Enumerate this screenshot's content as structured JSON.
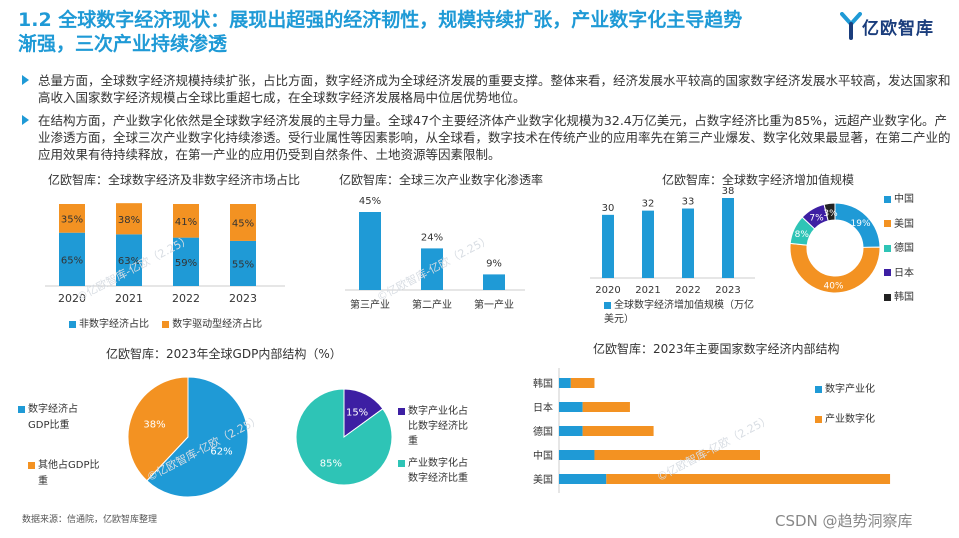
{
  "header": {
    "title_line1": "1.2 全球数字经济现状：展现出超强的经济韧性，规模持续扩张，产业数字化主导趋势",
    "title_line2": "渐强，三次产业持续渗透",
    "logo_text": "亿欧智库"
  },
  "paragraphs": [
    "总量方面，全球数字经济规模持续扩张，占比方面，数字经济成为全球经济发展的重要支撑。整体来看，经济发展水平较高的国家数字经济发展水平较高，发达国家和高收入国家数字经济规模占全球比重超七成，在全球数字经济发展格局中位居优势地位。",
    "在结构方面，产业数字化依然是全球数字经济发展的主导力量。全球47个主要经济体产业数字化规模为32.4万亿美元，占数字经济比重为85%，远超产业数字化。产业渗透方面，全球三次产业数字化持续渗透。受行业属性等因素影响，从全球看，数字技术在传统产业的应用率先在第三产业爆发、数字化效果最显著，在第二产业的应用效果有待持续释放，在第一产业的应用仍受到自然条件、土地资源等因素限制。"
  ],
  "colors": {
    "blue": "#1f9ad6",
    "orange": "#f39222",
    "teal": "#2ec4b6",
    "purple": "#3d1fa3",
    "black": "#222222",
    "title_blue": "#1f9ad6"
  },
  "footer": {
    "source": "数据来源：信通院，亿欧智库整理",
    "csdn": "CSDN @趋势洞察库"
  },
  "watermark": "©亿欧智库-亿欧（2.25）",
  "chart_data": [
    {
      "type": "bar",
      "stacked": true,
      "title": "亿欧智库：全球数字经济及非数字经济市场占比",
      "categories": [
        "2020",
        "2021",
        "2022",
        "2023"
      ],
      "series": [
        {
          "name": "非数字经济占比",
          "values": [
            65,
            63,
            59,
            55
          ],
          "labels": [
            "65%",
            "63%",
            "59%",
            "55%"
          ],
          "color": "#1f9ad6"
        },
        {
          "name": "数字驱动型经济占比",
          "values": [
            35,
            38,
            41,
            45
          ],
          "labels": [
            "35%",
            "38%",
            "41%",
            "45%"
          ],
          "color": "#f39222"
        }
      ]
    },
    {
      "type": "bar",
      "title": "亿欧智库：全球三次产业数字化渗透率",
      "categories": [
        "第三产业",
        "第二产业",
        "第一产业"
      ],
      "values": [
        45,
        24,
        9
      ],
      "labels": [
        "45%",
        "24%",
        "9%"
      ]
    },
    {
      "type": "bar",
      "title": "亿欧智库：全球数字经济增加值规模",
      "categories": [
        "2020",
        "2021",
        "2022",
        "2023"
      ],
      "values": [
        30,
        32,
        33,
        38
      ],
      "labels": [
        "30",
        "32",
        "33",
        "38"
      ],
      "legend": "全球数字经济增加值规模（万亿美元）"
    },
    {
      "type": "pie",
      "donut": true,
      "slices": [
        {
          "name": "中国",
          "value": 19,
          "label": "19%",
          "color": "#1f9ad6"
        },
        {
          "name": "美国",
          "value": 40,
          "label": "40%",
          "color": "#f39222"
        },
        {
          "name": "德国",
          "value": 8,
          "label": "8%",
          "color": "#2ec4b6"
        },
        {
          "name": "日本",
          "value": 7,
          "label": "7%",
          "color": "#3d1fa3"
        },
        {
          "name": "韩国",
          "value": 3,
          "label": "3%",
          "color": "#222222"
        }
      ]
    },
    {
      "type": "pie",
      "title": "亿欧智库：2023年全球GDP内部结构（%）",
      "slices": [
        {
          "name": "数字经济占GDP比重",
          "value": 38,
          "label": "38%",
          "color": "#f39222"
        },
        {
          "name": "其他占GDP比重",
          "value": 62,
          "label": "62%",
          "color": "#1f9ad6"
        }
      ],
      "sub_pie": {
        "slices": [
          {
            "name": "数字产业化占比数字经济比重",
            "value": 15,
            "label": "15%",
            "color": "#3d1fa3"
          },
          {
            "name": "产业数字化占数字经济比重",
            "value": 85,
            "label": "85%",
            "color": "#2ec4b6"
          }
        ]
      }
    },
    {
      "type": "bar",
      "orientation": "horizontal",
      "stacked": true,
      "title": "亿欧智库：2023年主要国家数字经济内部结构",
      "categories": [
        "韩国",
        "日本",
        "德国",
        "中国",
        "美国"
      ],
      "series": [
        {
          "name": "数字产业化",
          "values": [
            0.3,
            0.6,
            0.6,
            0.9,
            1.2
          ],
          "color": "#1f9ad6"
        },
        {
          "name": "产业数字化",
          "values": [
            0.6,
            1.2,
            1.8,
            4.2,
            7.2
          ],
          "color": "#f39222"
        }
      ],
      "xlim": [
        0,
        8.5
      ]
    }
  ]
}
